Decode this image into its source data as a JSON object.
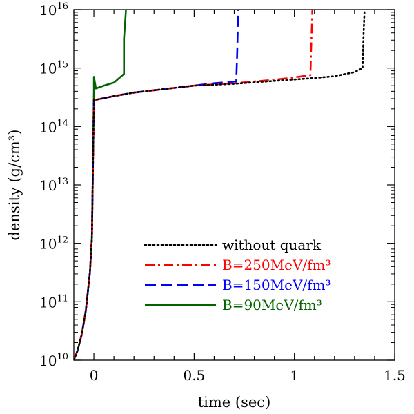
{
  "chart_data": {
    "type": "line",
    "title": "",
    "xlabel": "time (sec)",
    "ylabel": "density (g/cm³)",
    "xlim": [
      -0.1,
      1.5
    ],
    "ylim_log10": [
      10,
      16
    ],
    "yscale": "log",
    "x_ticks": [
      {
        "value": 0,
        "label": "0"
      },
      {
        "value": 0.5,
        "label": "0.5"
      },
      {
        "value": 1,
        "label": "1"
      },
      {
        "value": 1.5,
        "label": "1.5"
      }
    ],
    "y_ticks": [
      {
        "exp": 10,
        "base": "10",
        "sup": "10"
      },
      {
        "exp": 11,
        "base": "10",
        "sup": "11"
      },
      {
        "exp": 12,
        "base": "10",
        "sup": "12"
      },
      {
        "exp": 13,
        "base": "10",
        "sup": "13"
      },
      {
        "exp": 14,
        "base": "10",
        "sup": "14"
      },
      {
        "exp": 15,
        "base": "10",
        "sup": "15"
      },
      {
        "exp": 16,
        "base": "10",
        "sup": "16"
      }
    ],
    "legend_position": "bottom-right",
    "series": [
      {
        "name": "without quark",
        "color": "#000000",
        "dash": "dotted",
        "points": [
          [
            -0.1,
            10.0
          ],
          [
            -0.08,
            10.18
          ],
          [
            -0.06,
            10.45
          ],
          [
            -0.04,
            10.85
          ],
          [
            -0.02,
            11.5
          ],
          [
            -0.01,
            12.1
          ],
          [
            0.0,
            14.45
          ],
          [
            0.1,
            14.52
          ],
          [
            0.2,
            14.58
          ],
          [
            0.3,
            14.62
          ],
          [
            0.5,
            14.7
          ],
          [
            0.7,
            14.73
          ],
          [
            0.9,
            14.78
          ],
          [
            1.1,
            14.83
          ],
          [
            1.2,
            14.86
          ],
          [
            1.3,
            14.93
          ],
          [
            1.34,
            15.0
          ],
          [
            1.345,
            15.6
          ],
          [
            1.35,
            16.0
          ]
        ]
      },
      {
        "name": "B=250MeV/fm³",
        "color": "#ff0000",
        "dash": "dash-dot",
        "points": [
          [
            -0.1,
            10.0
          ],
          [
            -0.08,
            10.18
          ],
          [
            -0.06,
            10.45
          ],
          [
            -0.04,
            10.85
          ],
          [
            -0.02,
            11.5
          ],
          [
            -0.01,
            12.1
          ],
          [
            0.0,
            14.45
          ],
          [
            0.1,
            14.52
          ],
          [
            0.2,
            14.58
          ],
          [
            0.3,
            14.62
          ],
          [
            0.5,
            14.7
          ],
          [
            0.7,
            14.74
          ],
          [
            0.9,
            14.8
          ],
          [
            1.0,
            14.84
          ],
          [
            1.08,
            14.88
          ],
          [
            1.085,
            15.5
          ],
          [
            1.09,
            16.0
          ]
        ]
      },
      {
        "name": "B=150MeV/fm³",
        "color": "#0000ff",
        "dash": "dashed",
        "points": [
          [
            -0.1,
            10.0
          ],
          [
            -0.08,
            10.18
          ],
          [
            -0.06,
            10.45
          ],
          [
            -0.04,
            10.85
          ],
          [
            -0.02,
            11.5
          ],
          [
            -0.01,
            12.1
          ],
          [
            0.0,
            14.45
          ],
          [
            0.1,
            14.52
          ],
          [
            0.2,
            14.58
          ],
          [
            0.3,
            14.62
          ],
          [
            0.5,
            14.7
          ],
          [
            0.6,
            14.74
          ],
          [
            0.71,
            14.77
          ],
          [
            0.715,
            15.3
          ],
          [
            0.72,
            16.0
          ]
        ]
      },
      {
        "name": "B=90MeV/fm³",
        "color": "#006400",
        "dash": "solid",
        "points": [
          [
            -0.1,
            10.0
          ],
          [
            -0.08,
            10.18
          ],
          [
            -0.06,
            10.45
          ],
          [
            -0.04,
            10.85
          ],
          [
            -0.02,
            11.5
          ],
          [
            -0.01,
            12.1
          ],
          [
            0.0,
            14.6
          ],
          [
            0.0,
            14.85
          ],
          [
            0.01,
            14.65
          ],
          [
            0.05,
            14.7
          ],
          [
            0.1,
            14.75
          ],
          [
            0.15,
            14.9
          ],
          [
            0.15,
            15.5
          ],
          [
            0.16,
            16.0
          ]
        ]
      }
    ]
  }
}
